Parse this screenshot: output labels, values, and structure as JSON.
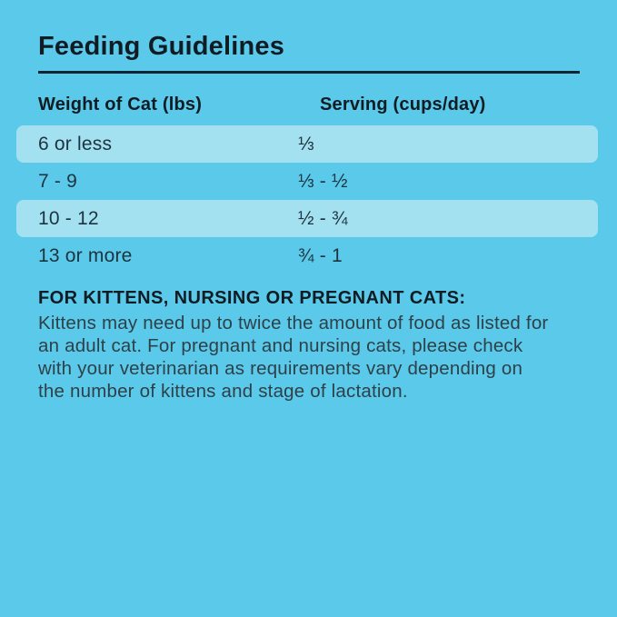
{
  "page": {
    "title": "Feeding Guidelines"
  },
  "table": {
    "columns": [
      "Weight of Cat (lbs)",
      "Serving (cups/day)"
    ],
    "rows": [
      {
        "weight": "6 or less",
        "serving": "⅓",
        "highlighted": true
      },
      {
        "weight": "7 - 9",
        "serving": "⅓ - ½",
        "highlighted": false
      },
      {
        "weight": "10 - 12",
        "serving": "½ - ¾",
        "highlighted": true
      },
      {
        "weight": "13 or more",
        "serving": "¾ - 1",
        "highlighted": false
      }
    ]
  },
  "note": {
    "heading": "FOR KITTENS, NURSING OR PREGNANT CATS:",
    "body": "Kittens may need up to twice the amount of food as listed for an adult cat. For pregnant and nursing cats, please check with your veterinarian as requirements vary depending on the number of kittens and stage of lactation."
  },
  "colors": {
    "background": "#5bc9e9",
    "row_highlight": "#a3e1f1",
    "heading_text": "#0f1c24",
    "table_text": "#1d3340",
    "body_text": "#2e4149",
    "rule": "#0d2433"
  }
}
